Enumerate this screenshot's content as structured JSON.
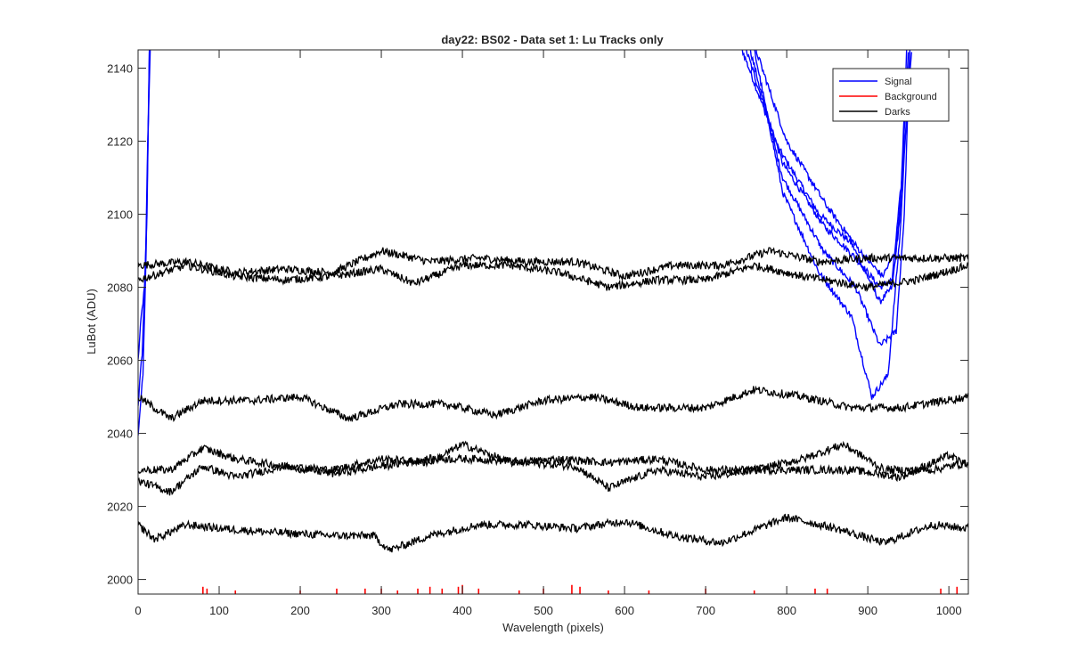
{
  "chart_data": {
    "type": "line",
    "title": "day22: BS02 - Data set 1: Lu Tracks only",
    "xlabel": "Wavelength (pixels)",
    "ylabel": "LuBot (ADU)",
    "xlim": [
      0,
      1024
    ],
    "ylim": [
      1996,
      2145
    ],
    "xticks": [
      0,
      100,
      200,
      300,
      400,
      500,
      600,
      700,
      800,
      900,
      1000
    ],
    "yticks": [
      2000,
      2020,
      2040,
      2060,
      2080,
      2100,
      2120,
      2140
    ],
    "legend": {
      "location": "top-right",
      "entries": [
        {
          "name": "Signal",
          "color": "#0000ff"
        },
        {
          "name": "Background",
          "color": "#ff0000"
        },
        {
          "name": "Darks",
          "color": "#000000"
        }
      ]
    },
    "series": [
      {
        "name": "Signal",
        "color": "#0000ff",
        "points": [
          [
            0,
            2060
          ],
          [
            4,
            2072
          ],
          [
            8,
            2080
          ],
          [
            11,
            2100
          ],
          [
            14,
            2145
          ]
        ]
      },
      {
        "name": "Signal",
        "color": "#0000ff",
        "points": [
          [
            0,
            2048
          ],
          [
            5,
            2062
          ],
          [
            9,
            2085
          ],
          [
            12,
            2120
          ],
          [
            15,
            2145
          ]
        ]
      },
      {
        "name": "Signal",
        "color": "#0000ff",
        "points": [
          [
            0,
            2040
          ],
          [
            6,
            2056
          ],
          [
            10,
            2090
          ],
          [
            14,
            2145
          ]
        ]
      },
      {
        "name": "Signal",
        "color": "#0000ff",
        "points": [
          [
            745,
            2145
          ],
          [
            790,
            2118
          ],
          [
            840,
            2100
          ],
          [
            880,
            2092
          ],
          [
            915,
            2076
          ],
          [
            930,
            2080
          ],
          [
            940,
            2100
          ],
          [
            948,
            2145
          ]
        ]
      },
      {
        "name": "Signal",
        "color": "#0000ff",
        "points": [
          [
            750,
            2145
          ],
          [
            795,
            2114
          ],
          [
            845,
            2097
          ],
          [
            885,
            2088
          ],
          [
            915,
            2080
          ],
          [
            930,
            2082
          ],
          [
            942,
            2110
          ],
          [
            950,
            2145
          ]
        ]
      },
      {
        "name": "Signal",
        "color": "#0000ff",
        "points": [
          [
            755,
            2145
          ],
          [
            795,
            2110
          ],
          [
            845,
            2090
          ],
          [
            885,
            2080
          ],
          [
            915,
            2064
          ],
          [
            935,
            2068
          ],
          [
            945,
            2100
          ],
          [
            952,
            2145
          ]
        ]
      },
      {
        "name": "Signal",
        "color": "#0000ff",
        "points": [
          [
            760,
            2145
          ],
          [
            795,
            2106
          ],
          [
            840,
            2084
          ],
          [
            880,
            2072
          ],
          [
            905,
            2050
          ],
          [
            925,
            2056
          ],
          [
            940,
            2095
          ],
          [
            952,
            2145
          ]
        ]
      },
      {
        "name": "Signal",
        "color": "#0000ff",
        "points": [
          [
            762,
            2145
          ],
          [
            800,
            2120
          ],
          [
            850,
            2102
          ],
          [
            890,
            2090
          ],
          [
            918,
            2083
          ],
          [
            935,
            2090
          ],
          [
            946,
            2120
          ],
          [
            954,
            2145
          ]
        ]
      },
      {
        "name": "Darks",
        "color": "#000000",
        "points": [
          [
            0,
            2086
          ],
          [
            60,
            2087
          ],
          [
            120,
            2084
          ],
          [
            180,
            2085
          ],
          [
            240,
            2084
          ],
          [
            300,
            2090
          ],
          [
            360,
            2087
          ],
          [
            420,
            2088
          ],
          [
            480,
            2087
          ],
          [
            540,
            2087
          ],
          [
            600,
            2083
          ],
          [
            660,
            2086
          ],
          [
            720,
            2086
          ],
          [
            780,
            2090
          ],
          [
            840,
            2087
          ],
          [
            900,
            2088
          ],
          [
            960,
            2088
          ],
          [
            1024,
            2088
          ]
        ]
      },
      {
        "name": "Darks",
        "color": "#000000",
        "points": [
          [
            0,
            2082
          ],
          [
            60,
            2086
          ],
          [
            120,
            2083
          ],
          [
            180,
            2082
          ],
          [
            240,
            2083
          ],
          [
            300,
            2085
          ],
          [
            340,
            2081
          ],
          [
            400,
            2086
          ],
          [
            460,
            2086
          ],
          [
            520,
            2084
          ],
          [
            580,
            2080
          ],
          [
            640,
            2082
          ],
          [
            700,
            2082
          ],
          [
            760,
            2086
          ],
          [
            820,
            2083
          ],
          [
            900,
            2080
          ],
          [
            960,
            2082
          ],
          [
            1024,
            2086
          ]
        ]
      },
      {
        "name": "Darks",
        "color": "#000000",
        "points": [
          [
            0,
            2050
          ],
          [
            40,
            2044
          ],
          [
            80,
            2049
          ],
          [
            140,
            2049
          ],
          [
            200,
            2050
          ],
          [
            260,
            2044
          ],
          [
            320,
            2048
          ],
          [
            380,
            2048
          ],
          [
            440,
            2045
          ],
          [
            500,
            2049
          ],
          [
            560,
            2050
          ],
          [
            620,
            2047
          ],
          [
            700,
            2047
          ],
          [
            760,
            2052
          ],
          [
            820,
            2050
          ],
          [
            880,
            2047
          ],
          [
            940,
            2047
          ],
          [
            1024,
            2050
          ]
        ]
      },
      {
        "name": "Darks",
        "color": "#000000",
        "points": [
          [
            0,
            2030
          ],
          [
            40,
            2030
          ],
          [
            80,
            2036
          ],
          [
            120,
            2033
          ],
          [
            180,
            2031
          ],
          [
            240,
            2030
          ],
          [
            300,
            2033
          ],
          [
            360,
            2032
          ],
          [
            400,
            2037
          ],
          [
            460,
            2032
          ],
          [
            520,
            2033
          ],
          [
            580,
            2032
          ],
          [
            640,
            2033
          ],
          [
            700,
            2030
          ],
          [
            760,
            2030
          ],
          [
            820,
            2033
          ],
          [
            870,
            2037
          ],
          [
            920,
            2030
          ],
          [
            980,
            2030
          ],
          [
            1024,
            2032
          ]
        ]
      },
      {
        "name": "Darks",
        "color": "#000000",
        "points": [
          [
            0,
            2027
          ],
          [
            40,
            2024
          ],
          [
            80,
            2031
          ],
          [
            120,
            2028
          ],
          [
            180,
            2031
          ],
          [
            240,
            2029
          ],
          [
            300,
            2031
          ],
          [
            360,
            2033
          ],
          [
            420,
            2033
          ],
          [
            480,
            2032
          ],
          [
            540,
            2031
          ],
          [
            580,
            2025
          ],
          [
            640,
            2030
          ],
          [
            700,
            2028
          ],
          [
            760,
            2030
          ],
          [
            820,
            2030
          ],
          [
            880,
            2030
          ],
          [
            940,
            2028
          ],
          [
            1000,
            2034
          ],
          [
            1024,
            2031
          ]
        ]
      },
      {
        "name": "Darks",
        "color": "#000000",
        "points": [
          [
            0,
            2015
          ],
          [
            20,
            2011
          ],
          [
            60,
            2015
          ],
          [
            100,
            2014
          ],
          [
            160,
            2013
          ],
          [
            240,
            2012
          ],
          [
            290,
            2012
          ],
          [
            310,
            2008
          ],
          [
            360,
            2012
          ],
          [
            420,
            2015
          ],
          [
            480,
            2015
          ],
          [
            540,
            2014
          ],
          [
            600,
            2016
          ],
          [
            660,
            2012
          ],
          [
            720,
            2010
          ],
          [
            800,
            2017
          ],
          [
            860,
            2014
          ],
          [
            920,
            2010
          ],
          [
            980,
            2015
          ],
          [
            1024,
            2014
          ]
        ]
      }
    ],
    "background_spikes": [
      [
        80,
        2
      ],
      [
        85,
        1.5
      ],
      [
        120,
        1
      ],
      [
        200,
        1
      ],
      [
        245,
        1.5
      ],
      [
        280,
        1.5
      ],
      [
        300,
        1.5
      ],
      [
        320,
        1
      ],
      [
        345,
        1.5
      ],
      [
        360,
        2
      ],
      [
        375,
        1.5
      ],
      [
        395,
        2
      ],
      [
        400,
        2.5
      ],
      [
        420,
        1.5
      ],
      [
        470,
        1
      ],
      [
        500,
        1.5
      ],
      [
        535,
        2.5
      ],
      [
        545,
        2
      ],
      [
        580,
        1
      ],
      [
        630,
        1
      ],
      [
        700,
        1.5
      ],
      [
        760,
        1
      ],
      [
        835,
        1.5
      ],
      [
        850,
        1.5
      ],
      [
        990,
        1.5
      ],
      [
        1010,
        2
      ]
    ]
  }
}
